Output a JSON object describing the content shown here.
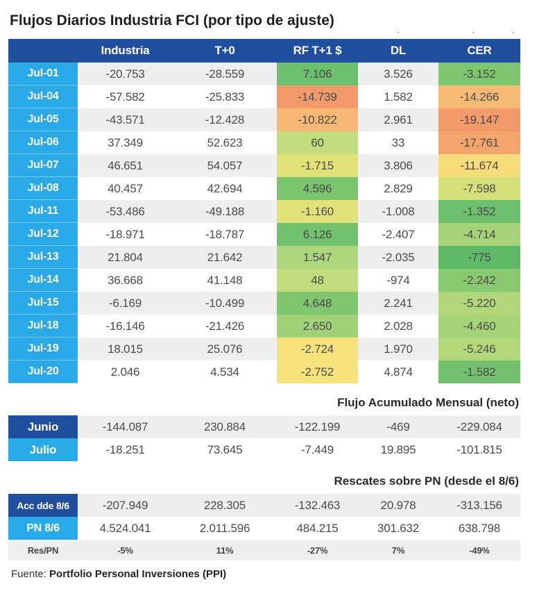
{
  "title": "Flujos Diarios Industria FCI (por tipo de ajuste)",
  "header": [
    "",
    "Industria",
    "T+0",
    "RF T+1 $",
    "DL",
    "CER"
  ],
  "chart_data": {
    "type": "table",
    "title": "Flujos Diarios Industria FCI (por tipo de ajuste)",
    "columns": [
      "Industria",
      "T+0",
      "RF T+1 $",
      "DL",
      "CER"
    ],
    "rows": [
      {
        "date": "Jul-01",
        "values": [
          "-20.753",
          "-28.559",
          "7.106",
          "3.526",
          "-3.152"
        ]
      },
      {
        "date": "Jul-04",
        "values": [
          "-57.582",
          "-25.833",
          "-14.739",
          "1.582",
          "-14.266"
        ]
      },
      {
        "date": "Jul-05",
        "values": [
          "-43.571",
          "-12.428",
          "-10.822",
          "2.961",
          "-19.147"
        ]
      },
      {
        "date": "Jul-06",
        "values": [
          "37.349",
          "52.623",
          "60",
          "33",
          "-17.761"
        ]
      },
      {
        "date": "Jul-07",
        "values": [
          "46.651",
          "54.057",
          "-1.715",
          "3.806",
          "-11.674"
        ]
      },
      {
        "date": "Jul-08",
        "values": [
          "40.457",
          "42.694",
          "4.596",
          "2.829",
          "-7.598"
        ]
      },
      {
        "date": "Jul-11",
        "values": [
          "-53.486",
          "-49.188",
          "-1.160",
          "-1.008",
          "-1.352"
        ]
      },
      {
        "date": "Jul-12",
        "values": [
          "-18.971",
          "-18.787",
          "6.126",
          "-2.407",
          "-4.714"
        ]
      },
      {
        "date": "Jul-13",
        "values": [
          "21.804",
          "21.642",
          "1.547",
          "-2.035",
          "-775"
        ]
      },
      {
        "date": "Jul-14",
        "values": [
          "36.668",
          "41.148",
          "48",
          "-974",
          "-2.242"
        ]
      },
      {
        "date": "Jul-15",
        "values": [
          "-6.169",
          "-10.499",
          "4.648",
          "2.241",
          "-5.220"
        ]
      },
      {
        "date": "Jul-18",
        "values": [
          "-16.146",
          "-21.426",
          "2.650",
          "2.028",
          "-4.460"
        ]
      },
      {
        "date": "Jul-19",
        "values": [
          "18.015",
          "25.076",
          "-2.724",
          "1.970",
          "-5.246"
        ]
      },
      {
        "date": "Jul-20",
        "values": [
          "2.046",
          "4.534",
          "-2.752",
          "4.874",
          "-1.582"
        ]
      }
    ],
    "heat_colors": {
      "rf": [
        "#6cbf6c",
        "#f39a6a",
        "#f6b874",
        "#c0dc7c",
        "#e0e277",
        "#7bc46e",
        "#e0e277",
        "#72c16e",
        "#aed67a",
        "#c0dc7c",
        "#80c66f",
        "#a1d177",
        "#f7e27c",
        "#f7e27c"
      ],
      "cer": [
        "#7dc66f",
        "#f7bb76",
        "#f39a6a",
        "#f4a56c",
        "#f7dd79",
        "#d3e07a",
        "#6cbf6c",
        "#a7d378",
        "#5fba68",
        "#88c970",
        "#b2d77a",
        "#a6d278",
        "#b3d87a",
        "#73c16e"
      ]
    }
  },
  "monthly": {
    "title": "Flujo Acumulado Mensual (neto)",
    "rows": [
      {
        "label": "Junio",
        "values": [
          "-144.087",
          "230.884",
          "-122.199",
          "-469",
          "-229.084"
        ]
      },
      {
        "label": "Julio",
        "values": [
          "-18.251",
          "73.645",
          "-7.449",
          "19.895",
          "-101.815"
        ]
      }
    ]
  },
  "rescates": {
    "title": "Rescates sobre PN (desde el 8/6)",
    "rows": [
      {
        "label": "Acc dde 8/6",
        "values": [
          "-207.949",
          "228.305",
          "-132.463",
          "20.978",
          "-313.156"
        ]
      },
      {
        "label": "PN 8/6",
        "values": [
          "4.524.041",
          "2.011.596",
          "484.215",
          "301.632",
          "638.798"
        ]
      },
      {
        "label": "Res/PN",
        "values": [
          "-5%",
          "11%",
          "-27%",
          "7%",
          "-49%"
        ]
      }
    ]
  },
  "source": {
    "label": "Fuente:",
    "name": "Portfolio Personal Inversiones (PPI)"
  }
}
